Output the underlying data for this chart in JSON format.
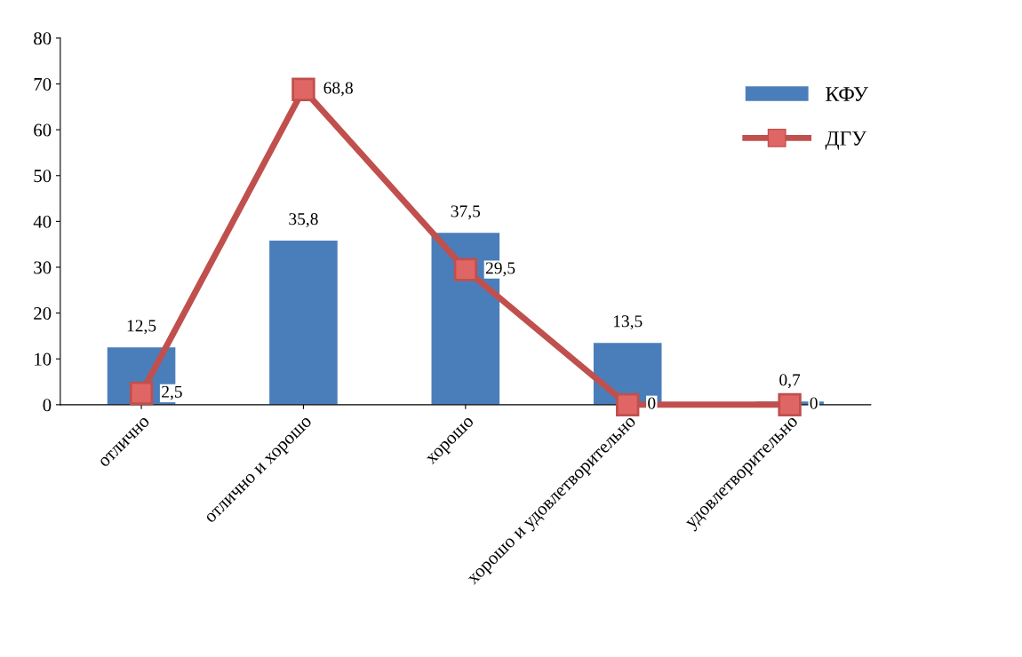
{
  "chart_data": {
    "type": "bar",
    "categories": [
      "отлично",
      "отлично и хорошо",
      "хорошо",
      "хорошо и удовлетворительно",
      "удовлетворительно"
    ],
    "series": [
      {
        "name": "КФУ",
        "color": "#4a7ebb",
        "values": [
          12.5,
          35.8,
          37.5,
          13.5,
          0.7
        ],
        "value_labels": [
          "12,5",
          "35,8",
          "37,5",
          "13,5",
          "0,7"
        ]
      },
      {
        "name": "ДГУ",
        "type": "line",
        "color": "#c0504d",
        "values": [
          2.5,
          68.8,
          29.5,
          0,
          0
        ],
        "value_labels": [
          "2,5",
          "68,8",
          "29,5",
          "0",
          "0"
        ]
      }
    ],
    "ylim": [
      0,
      80
    ],
    "yticks": [
      0,
      10,
      20,
      30,
      40,
      50,
      60,
      70,
      80
    ],
    "grid": false,
    "legend": "top right",
    "marker": "square",
    "line_style": "solid"
  }
}
